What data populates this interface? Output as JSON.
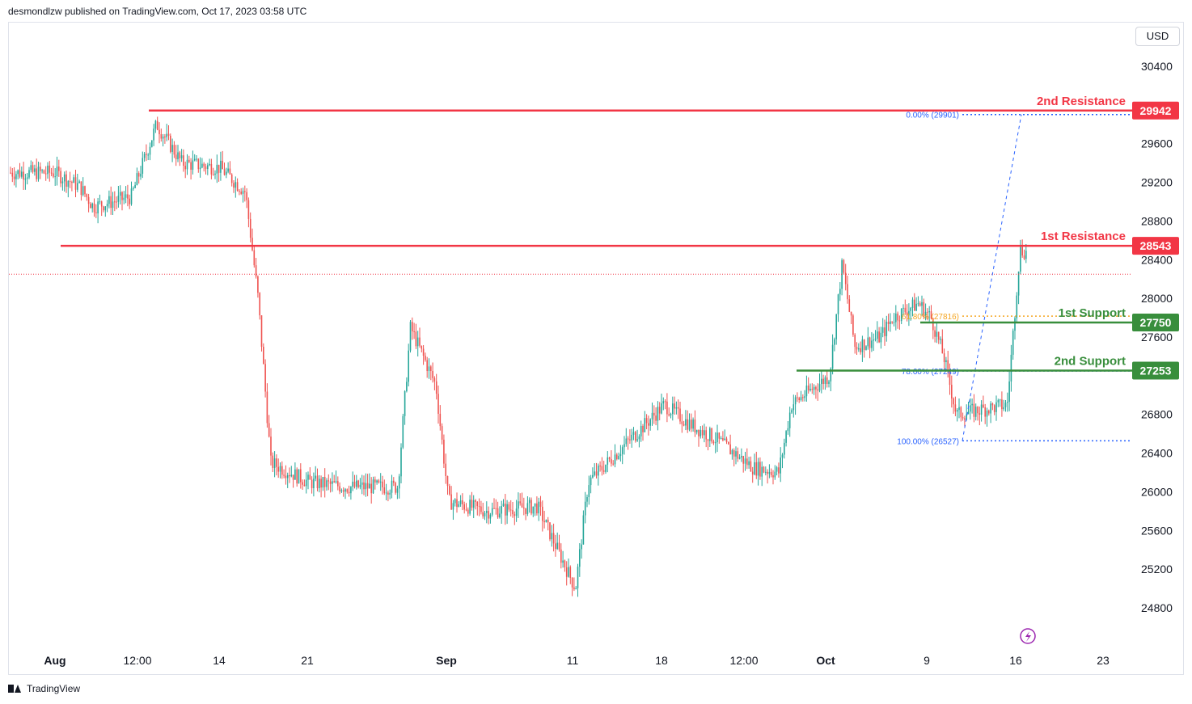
{
  "header": {
    "publisher_text": "desmondlzw published on TradingView.com, Oct 17, 2023 03:58 UTC"
  },
  "currency": "USD",
  "footer": {
    "brand": "TradingView"
  },
  "colors": {
    "up": "#26a69a",
    "down": "#ef5350",
    "resistance": "#f23645",
    "support": "#388e3c",
    "fib_blue": "#2962ff",
    "fib_orange": "#f5a623",
    "dot_red": "#f23645"
  },
  "chart_data": {
    "type": "candlestick",
    "symbol_currency": "USD",
    "y_axis": {
      "ticks": [
        30400,
        29600,
        29200,
        28800,
        28400,
        28000,
        27600,
        26800,
        26400,
        26000,
        25600,
        25200,
        24800
      ]
    },
    "x_axis": {
      "ticks": [
        {
          "label": "Aug",
          "bold": true
        },
        {
          "label": "12:00",
          "bold": false
        },
        {
          "label": "14",
          "bold": false
        },
        {
          "label": "21",
          "bold": false
        },
        {
          "label": "Sep",
          "bold": true
        },
        {
          "label": "11",
          "bold": false
        },
        {
          "label": "18",
          "bold": false
        },
        {
          "label": "12:00",
          "bold": false
        },
        {
          "label": "Oct",
          "bold": true
        },
        {
          "label": "9",
          "bold": false
        },
        {
          "label": "16",
          "bold": false
        },
        {
          "label": "23",
          "bold": false
        }
      ]
    },
    "price_path": [
      [
        "Aug 1",
        29300
      ],
      [
        "Aug 3",
        29150
      ],
      [
        "Aug 4",
        28950
      ],
      [
        "Aug 7",
        29050
      ],
      [
        "Aug 9",
        29800
      ],
      [
        "Aug 11",
        29400
      ],
      [
        "Aug 14",
        29350
      ],
      [
        "Aug 16",
        29100
      ],
      [
        "Aug 17",
        28000
      ],
      [
        "Aug 18",
        26300
      ],
      [
        "Aug 21",
        26100
      ],
      [
        "Aug 24",
        26050
      ],
      [
        "Aug 28",
        26050
      ],
      [
        "Aug 29",
        27700
      ],
      [
        "Aug 31",
        27100
      ],
      [
        "Sep 1",
        25900
      ],
      [
        "Sep 4",
        25800
      ],
      [
        "Sep 8",
        25850
      ],
      [
        "Sep 11",
        25000
      ],
      [
        "Sep 12",
        26100
      ],
      [
        "Sep 15",
        26500
      ],
      [
        "Sep 18",
        26900
      ],
      [
        "Sep 20",
        26700
      ],
      [
        "Sep 22",
        26550
      ],
      [
        "Sep 25",
        26250
      ],
      [
        "Sep 27",
        26200
      ],
      [
        "Sep 28",
        26900
      ],
      [
        "Oct 1",
        27200
      ],
      [
        "Oct 2",
        28350
      ],
      [
        "Oct 3",
        27500
      ],
      [
        "Oct 5",
        27600
      ],
      [
        "Oct 6",
        27800
      ],
      [
        "Oct 8",
        27950
      ],
      [
        "Oct 9",
        27800
      ],
      [
        "Oct 10",
        27400
      ],
      [
        "Oct 11",
        26800
      ],
      [
        "Oct 13",
        26850
      ],
      [
        "Oct 15",
        26900
      ],
      [
        "Oct 16",
        28500
      ],
      [
        "Oct 17",
        28450
      ]
    ],
    "levels": [
      {
        "name": "2nd Resistance",
        "value": 29942,
        "color": "#f23645"
      },
      {
        "name": "1st Resistance",
        "value": 28543,
        "color": "#f23645"
      },
      {
        "name": "1st Support",
        "value": 27750,
        "color": "#388e3c"
      },
      {
        "name": "2nd Support",
        "value": 27253,
        "color": "#388e3c"
      }
    ],
    "fibonacci": [
      {
        "label": "0.00% (29901)",
        "value": 29901,
        "color": "#2962ff"
      },
      {
        "label": "61.80% (27816)",
        "value": 27816,
        "color": "#f5a623"
      },
      {
        "label": "78.60% (27249)",
        "value": 27249,
        "color": "#2962ff"
      },
      {
        "label": "100.00% (26527)",
        "value": 26527,
        "color": "#2962ff"
      }
    ],
    "current_price_line": 28250
  }
}
